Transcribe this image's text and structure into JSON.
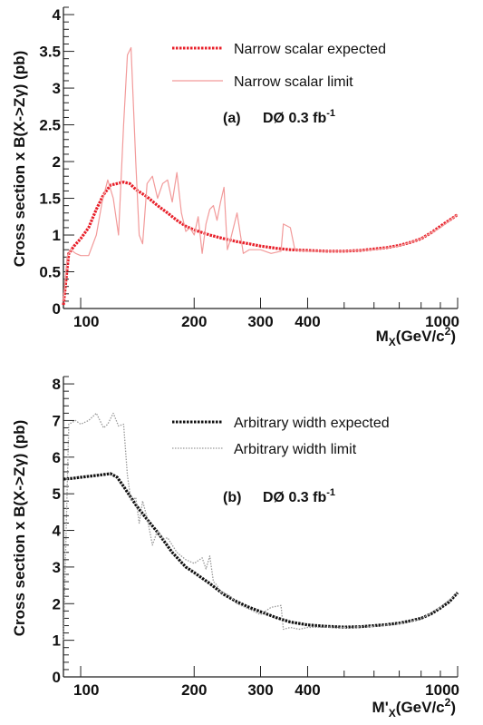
{
  "chart_data": [
    {
      "type": "line",
      "panel_label": "(a)",
      "annotation": "DØ 0.3 fb",
      "annotation_sup": "-1",
      "xscale": "log",
      "xlim": [
        90,
        1000
      ],
      "ylim": [
        0,
        4.1
      ],
      "x_ticks": [
        "100",
        "200",
        "300",
        "400",
        "1000"
      ],
      "y_ticks": [
        "0",
        "0.5",
        "1",
        "1.5",
        "2",
        "2.5",
        "3",
        "3.5",
        "4"
      ],
      "xlabel_main": "M",
      "xlabel_sub": "X",
      "xlabel_rest": "(GeV/c",
      "xlabel_sup": "2",
      "xlabel_end": ")",
      "ylabel": "Cross section x B(X->Zγ) (pb)",
      "legend_position": "top-right",
      "series": [
        {
          "name": "Narrow scalar expected",
          "color": "#e8202a",
          "style": "thick-dotted",
          "x": [
            90,
            93,
            96,
            100,
            105,
            110,
            115,
            120,
            125,
            130,
            135,
            140,
            150,
            160,
            170,
            180,
            190,
            200,
            220,
            240,
            260,
            280,
            300,
            330,
            360,
            400,
            450,
            500,
            550,
            600,
            650,
            700,
            750,
            800,
            850,
            900,
            950,
            1000
          ],
          "y": [
            0.05,
            0.75,
            0.85,
            0.95,
            1.1,
            1.35,
            1.55,
            1.68,
            1.7,
            1.72,
            1.7,
            1.62,
            1.52,
            1.4,
            1.3,
            1.2,
            1.12,
            1.07,
            1.0,
            0.95,
            0.91,
            0.88,
            0.85,
            0.82,
            0.8,
            0.79,
            0.78,
            0.78,
            0.79,
            0.81,
            0.83,
            0.86,
            0.9,
            0.95,
            1.03,
            1.12,
            1.2,
            1.28
          ]
        },
        {
          "name": "Narrow scalar limit",
          "color": "#f29a9a",
          "style": "thin-solid",
          "x": [
            90,
            92,
            94,
            97,
            100,
            105,
            110,
            114,
            118,
            122,
            126,
            130,
            133,
            136,
            140,
            143,
            146,
            150,
            155,
            160,
            165,
            170,
            175,
            180,
            185,
            190,
            195,
            200,
            205,
            210,
            215,
            220,
            225,
            230,
            235,
            240,
            245,
            250,
            260,
            270,
            280,
            300,
            320,
            340,
            345,
            360,
            370,
            400,
            450,
            500,
            600,
            700,
            800,
            900,
            1000
          ],
          "y": [
            0.1,
            0.7,
            0.8,
            0.75,
            0.72,
            0.72,
            1.0,
            1.45,
            1.75,
            1.5,
            1.0,
            2.5,
            3.45,
            3.55,
            2.0,
            1.0,
            0.88,
            1.7,
            1.8,
            1.5,
            1.7,
            1.75,
            1.45,
            1.85,
            1.3,
            1.05,
            1.1,
            1.0,
            1.25,
            0.75,
            1.15,
            1.35,
            1.4,
            1.2,
            1.45,
            1.65,
            0.8,
            0.95,
            1.3,
            0.75,
            0.8,
            0.8,
            0.75,
            0.78,
            1.15,
            1.1,
            0.8,
            0.78,
            0.78,
            0.78,
            0.8,
            0.85,
            0.95,
            1.1,
            1.28
          ]
        }
      ]
    },
    {
      "type": "line",
      "panel_label": "(b)",
      "annotation": "DØ 0.3 fb",
      "annotation_sup": "-1",
      "xscale": "log",
      "xlim": [
        90,
        1000
      ],
      "ylim": [
        0,
        8.2
      ],
      "x_ticks": [
        "100",
        "200",
        "300",
        "400",
        "1000"
      ],
      "y_ticks": [
        "0",
        "1",
        "2",
        "3",
        "4",
        "5",
        "6",
        "7",
        "8"
      ],
      "xlabel_main": "M'",
      "xlabel_sub": "X",
      "xlabel_rest": "(GeV/c",
      "xlabel_sup": "2",
      "xlabel_end": ")",
      "ylabel": "Cross section x B(X->Zγ) (pb)",
      "legend_position": "top-right",
      "series": [
        {
          "name": "Arbitrary width expected",
          "color": "#111111",
          "style": "thick-dotted",
          "x": [
            90,
            95,
            100,
            110,
            120,
            125,
            130,
            140,
            150,
            160,
            175,
            190,
            200,
            220,
            240,
            260,
            280,
            300,
            330,
            360,
            400,
            450,
            500,
            550,
            600,
            650,
            700,
            750,
            800,
            850,
            900,
            950,
            1000
          ],
          "y": [
            5.4,
            5.42,
            5.45,
            5.5,
            5.55,
            5.45,
            5.2,
            4.7,
            4.3,
            3.95,
            3.4,
            3.0,
            2.85,
            2.55,
            2.25,
            2.05,
            1.9,
            1.78,
            1.62,
            1.5,
            1.42,
            1.38,
            1.36,
            1.37,
            1.4,
            1.43,
            1.47,
            1.53,
            1.6,
            1.72,
            1.88,
            2.05,
            2.3
          ]
        },
        {
          "name": "Arbitrary width limit",
          "color": "#999999",
          "style": "thin-dotted",
          "x": [
            90,
            93,
            97,
            100,
            105,
            110,
            115,
            118,
            122,
            126,
            130,
            133,
            136,
            140,
            143,
            146,
            150,
            155,
            160,
            165,
            170,
            180,
            190,
            200,
            210,
            215,
            220,
            225,
            230,
            235,
            240,
            250,
            260,
            280,
            300,
            320,
            340,
            345,
            360,
            380,
            400,
            450,
            500,
            600,
            700,
            800,
            900,
            1000
          ],
          "y": [
            1.0,
            6.9,
            7.0,
            6.9,
            7.0,
            7.2,
            6.8,
            6.9,
            7.2,
            6.85,
            6.9,
            5.5,
            4.8,
            4.9,
            4.2,
            4.8,
            4.35,
            3.6,
            4.0,
            3.75,
            3.8,
            3.4,
            3.2,
            3.1,
            3.25,
            2.95,
            3.3,
            2.6,
            2.5,
            2.3,
            2.3,
            2.2,
            2.0,
            1.85,
            1.7,
            1.9,
            1.95,
            1.3,
            1.35,
            1.3,
            1.35,
            1.36,
            1.35,
            1.38,
            1.45,
            1.58,
            1.9,
            2.3
          ]
        }
      ]
    }
  ]
}
